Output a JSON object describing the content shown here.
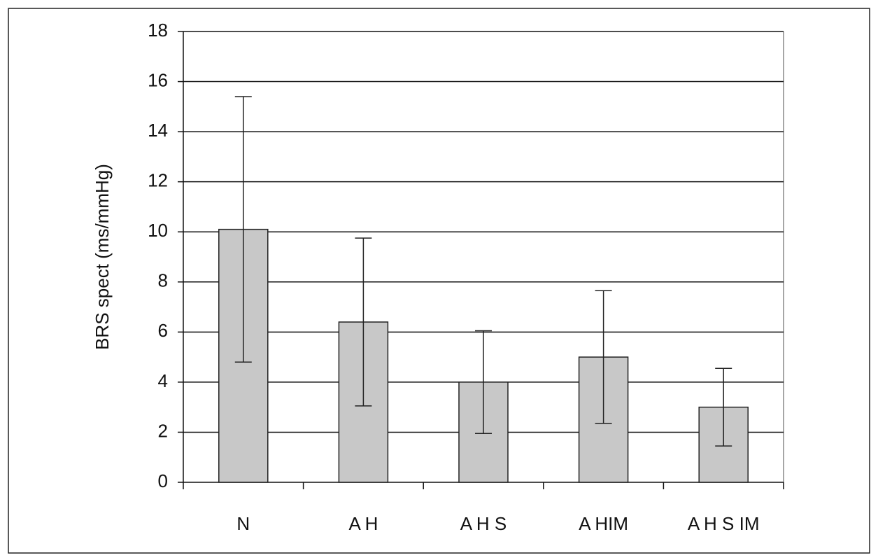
{
  "chart_data": {
    "type": "bar",
    "y_label": "BRS spect (ms/mmHg)",
    "categories": [
      "N",
      "A H",
      "A H S",
      "A HIM",
      "A H S IM"
    ],
    "values": [
      10.1,
      6.4,
      4.0,
      5.0,
      3.0
    ],
    "errors": [
      5.3,
      3.35,
      2.05,
      2.65,
      1.55
    ],
    "color": "#c8c8c8",
    "ylim": [
      0,
      18
    ],
    "yticks": [
      0,
      2,
      4,
      6,
      8,
      10,
      12,
      14,
      16,
      18
    ],
    "grid": true
  }
}
